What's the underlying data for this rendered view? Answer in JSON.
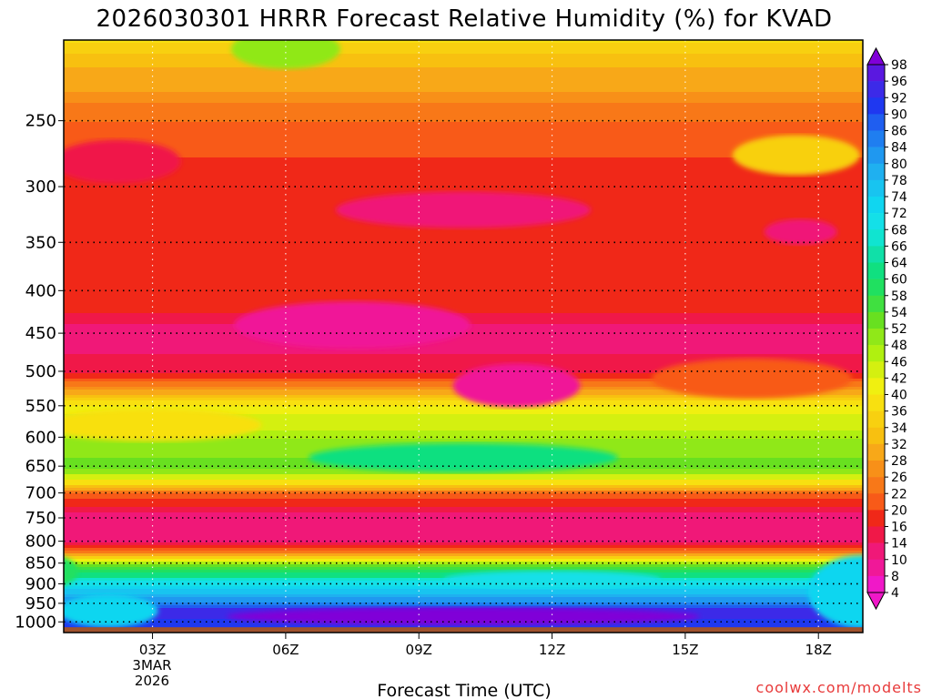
{
  "chart_data": {
    "type": "heatmap",
    "title": "2026030301 HRRR Forecast Relative Humidity (%) for KVAD",
    "xlabel": "Forecast Time (UTC)",
    "ylabel": "",
    "x_ticks": [
      "03Z",
      "06Z",
      "09Z",
      "12Z",
      "15Z",
      "18Z"
    ],
    "x_date_label": [
      "3MAR",
      "2026"
    ],
    "y_ticks": [
      250,
      300,
      350,
      400,
      450,
      500,
      550,
      600,
      650,
      700,
      750,
      800,
      850,
      900,
      950,
      1000
    ],
    "x_range_hours": [
      1,
      19
    ],
    "y_range_hPa": [
      1030,
      200
    ],
    "y_scale": "log",
    "grid": true,
    "colorbar": {
      "levels": [
        98,
        96,
        92,
        90,
        86,
        84,
        80,
        78,
        74,
        72,
        68,
        66,
        64,
        60,
        58,
        54,
        52,
        48,
        46,
        42,
        40,
        36,
        34,
        32,
        28,
        26,
        22,
        20,
        16,
        14,
        10,
        8,
        4
      ],
      "colors": [
        "#8000d8",
        "#5a18e0",
        "#3c2ae8",
        "#1f38f0",
        "#1f5ef0",
        "#1f7ef0",
        "#1f98f0",
        "#1fb0f0",
        "#18c4f0",
        "#10d6f0",
        "#14e0e8",
        "#10e4d0",
        "#10e0a8",
        "#10e080",
        "#20e060",
        "#40e040",
        "#68e020",
        "#90e818",
        "#b0f010",
        "#d4f010",
        "#f0f010",
        "#f8e010",
        "#f8d010",
        "#f8c010",
        "#f8a818",
        "#f89018",
        "#f87818",
        "#f85a18",
        "#f02818",
        "#f01848",
        "#f01878",
        "#f01898",
        "#f018c8"
      ]
    },
    "rh_profiles": [
      {
        "p": 200,
        "rh": 36
      },
      {
        "p": 230,
        "rh": 28
      },
      {
        "p": 250,
        "rh": 22
      },
      {
        "p": 300,
        "rh": 18
      },
      {
        "p": 350,
        "rh": 16
      },
      {
        "p": 400,
        "rh": 20
      },
      {
        "p": 450,
        "rh": 12
      },
      {
        "p": 500,
        "rh": 16
      },
      {
        "p": 550,
        "rh": 40
      },
      {
        "p": 600,
        "rh": 48
      },
      {
        "p": 650,
        "rh": 54
      },
      {
        "p": 680,
        "rh": 36
      },
      {
        "p": 700,
        "rh": 22
      },
      {
        "p": 750,
        "rh": 10
      },
      {
        "p": 800,
        "rh": 14
      },
      {
        "p": 830,
        "rh": 30
      },
      {
        "p": 850,
        "rh": 52
      },
      {
        "p": 900,
        "rh": 72
      },
      {
        "p": 940,
        "rh": 82
      },
      {
        "p": 970,
        "rh": 96
      },
      {
        "p": 1000,
        "rh": 90
      }
    ],
    "surface_color": "#a0522d",
    "surface_pressure_hPa": 1015
  },
  "credit": "coolwx.com/modelts"
}
